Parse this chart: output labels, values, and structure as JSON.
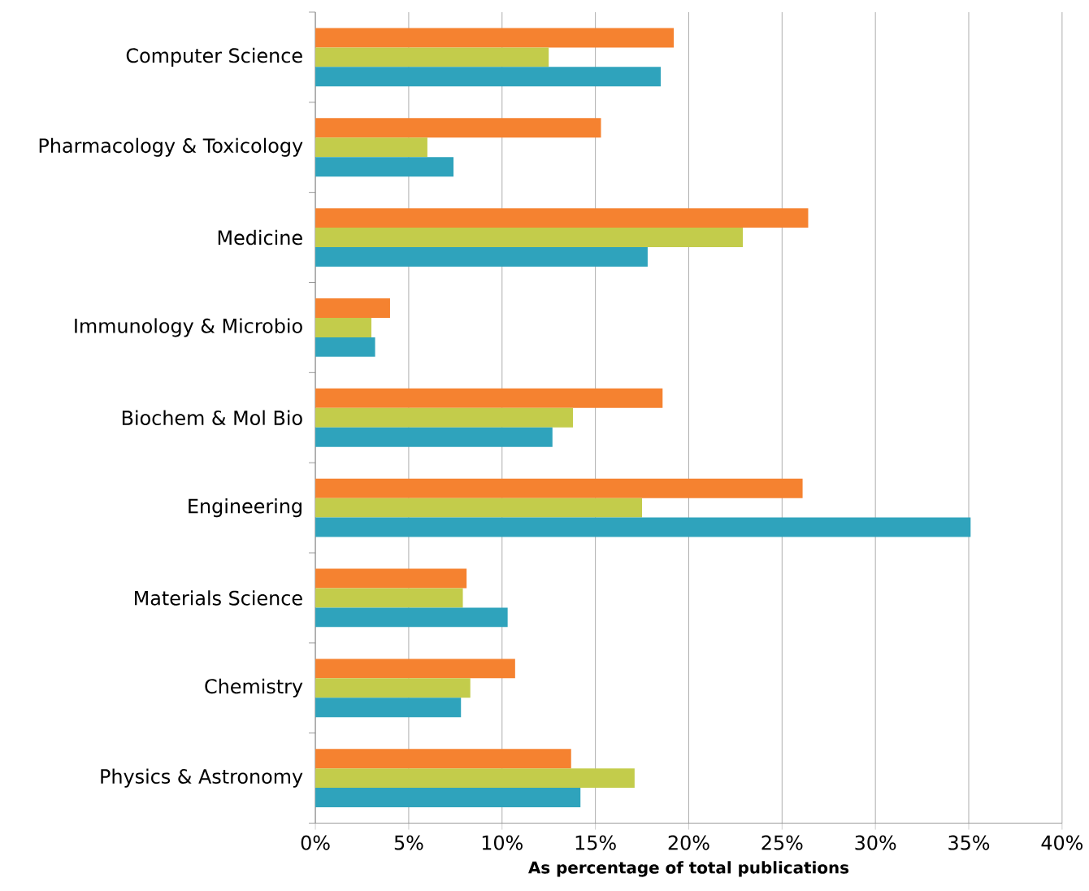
{
  "chart_data": {
    "type": "bar",
    "orientation": "horizontal",
    "xlabel": "**As percentage of total publications**",
    "categories": [
      "Computer Science",
      "Pharmacology & Toxicology",
      "Medicine",
      "Immunology & Microbio",
      "Biochem & Mol Bio",
      "Engineering",
      "Materials Science",
      "Chemistry",
      "Physics & Astronomy"
    ],
    "series": [
      {
        "color": "#f58230",
        "values": [
          19.2,
          15.3,
          26.4,
          4.0,
          18.6,
          26.1,
          8.1,
          10.7,
          13.7
        ]
      },
      {
        "color": "#c3cc4b",
        "values": [
          12.5,
          6.0,
          22.9,
          3.0,
          13.8,
          17.5,
          7.9,
          8.3,
          17.1
        ]
      },
      {
        "color": "#2fa3bc",
        "values": [
          18.5,
          7.4,
          17.8,
          3.2,
          12.7,
          35.1,
          10.3,
          7.8,
          14.2
        ]
      }
    ],
    "xlim": [
      0,
      40
    ],
    "xticks": [
      {
        "value": 0,
        "label": "0%"
      },
      {
        "value": 5,
        "label": "5%"
      },
      {
        "value": 10,
        "label": "10%"
      },
      {
        "value": 15,
        "label": "15%"
      },
      {
        "value": 20,
        "label": "20%"
      },
      {
        "value": 25,
        "label": "25%"
      },
      {
        "value": 30,
        "label": "30%"
      },
      {
        "value": 35,
        "label": "35%"
      },
      {
        "value": 40,
        "label": "40%"
      }
    ],
    "grid": "x"
  }
}
